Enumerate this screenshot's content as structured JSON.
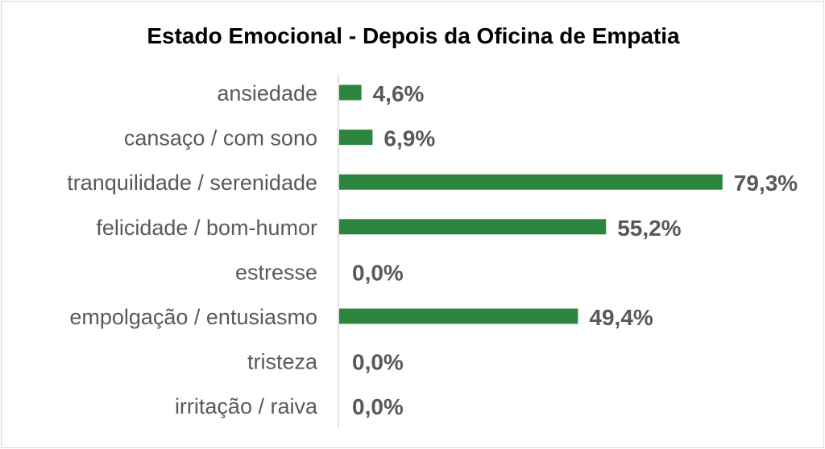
{
  "chart_data": {
    "type": "bar",
    "orientation": "horizontal",
    "title": "Estado Emocional - Depois da Oficina de Empatia",
    "categories": [
      "ansiedade",
      "cansaço / com sono",
      "tranquilidade / serenidade",
      "felicidade / bom-humor",
      "estresse",
      "empolgação / entusiasmo",
      "tristeza",
      "irritação / raiva"
    ],
    "values": [
      4.6,
      6.9,
      79.3,
      55.2,
      0.0,
      49.4,
      0.0,
      0.0
    ],
    "value_labels": [
      "4,6%",
      "6,9%",
      "79,3%",
      "55,2%",
      "0,0%",
      "49,4%",
      "0,0%",
      "0,0%"
    ],
    "unit": "%",
    "xlim": [
      0,
      80
    ],
    "grid": false,
    "legend": "none",
    "bar_color": "#2e8540",
    "xlabel": "",
    "ylabel": ""
  }
}
